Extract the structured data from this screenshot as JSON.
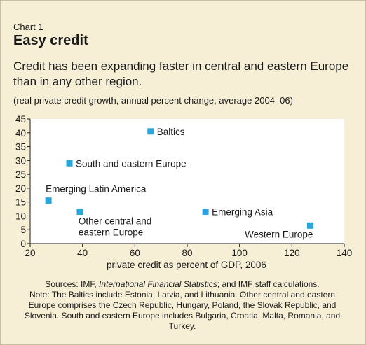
{
  "header": {
    "label": "Chart 1",
    "title": "Easy credit",
    "subtitle": "Credit has been expanding faster in central and eastern Europe than in any other region.",
    "note": "(real private credit growth, annual percent change, average 2004–06)"
  },
  "chart_data": {
    "type": "scatter",
    "xlabel": "private credit as percent of GDP, 2006",
    "ylabel": "",
    "xlim": [
      20,
      140
    ],
    "ylim": [
      0,
      45
    ],
    "xticks": [
      20,
      40,
      60,
      80,
      100,
      120,
      140
    ],
    "yticks": [
      0,
      5,
      10,
      15,
      20,
      25,
      30,
      35,
      40,
      45
    ],
    "grid": false,
    "marker_color": "#2aa5de",
    "points": [
      {
        "label": "Baltics",
        "x": 66,
        "y": 40.5
      },
      {
        "label": "South and eastern Europe",
        "x": 35,
        "y": 29
      },
      {
        "label": "Emerging Latin America",
        "x": 27,
        "y": 15.5
      },
      {
        "label": "Other central and eastern Europe",
        "x": 39,
        "y": 11.5
      },
      {
        "label": "Emerging Asia",
        "x": 87,
        "y": 11.5
      },
      {
        "label": "Western Europe",
        "x": 127,
        "y": 6.5
      }
    ]
  },
  "sources": {
    "prefix": "Sources: IMF, ",
    "title": "International Financial Statistics",
    "suffix": "; and IMF staff calculations.",
    "note": "Note: The Baltics include Estonia, Latvia, and Lithuania. Other central and eastern Europe comprises the Czech Republic, Hungary, Poland, the Slovak Republic, and Slovenia. South and eastern Europe includes Bulgaria, Croatia, Malta, Romania, and Turkey."
  },
  "colors": {
    "background": "#f6efd6",
    "plot_background": "#ffffff",
    "marker": "#2aa5de"
  }
}
